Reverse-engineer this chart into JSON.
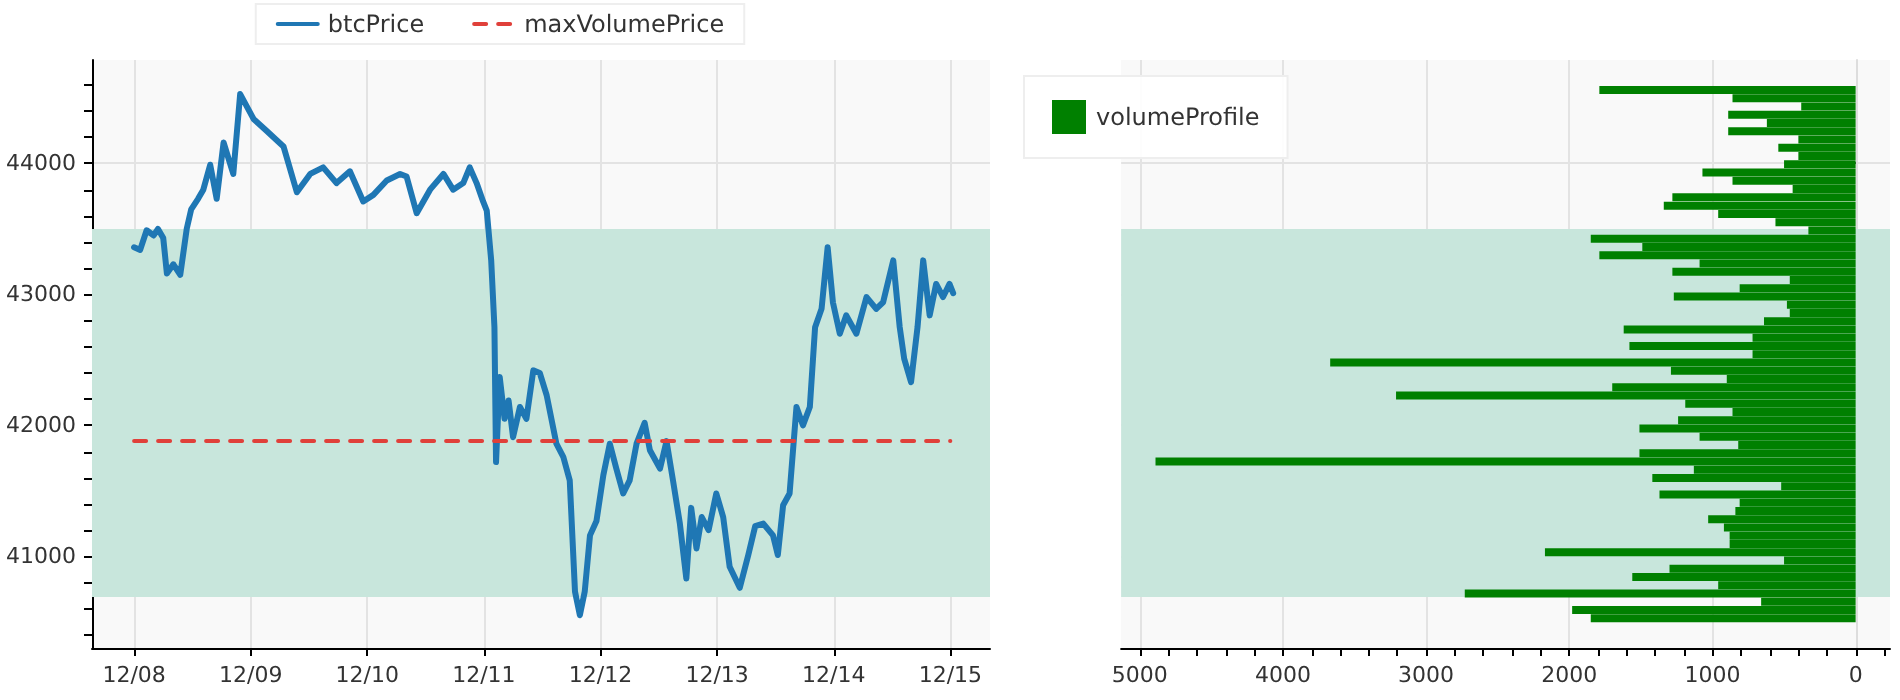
{
  "chart_data": [
    {
      "type": "line",
      "marker": "none",
      "grid": true,
      "legend": "top",
      "series": [
        {
          "name": "btcPrice",
          "color": "#1f77b4",
          "line_style": "solid",
          "x": [
            "--12-08T00:00",
            "--12-08T01:15",
            "--12-08T02:35",
            "--12-08T04:00",
            "--12-08T04:55",
            "--12-08T06:00",
            "--12-08T06:45",
            "--12-08T08:05",
            "--12-08T09:30",
            "--12-08T10:50",
            "--12-08T11:45",
            "--12-08T13:10",
            "--12-08T14:15",
            "--12-08T15:40",
            "--12-08T17:00",
            "--12-08T18:25",
            "--12-08T20:25",
            "--12-08T21:50",
            "--12-09T00:35",
            "--12-09T03:15",
            "--12-09T06:45",
            "--12-09T09:30",
            "--12-09T12:15",
            "--12-09T14:55",
            "--12-09T17:40",
            "--12-09T20:25",
            "--12-09T23:10",
            "--12-10T01:15",
            "--12-10T04:00",
            "--12-10T06:45",
            "--12-10T08:05",
            "--12-10T10:10",
            "--12-10T12:55",
            "--12-10T15:40",
            "--12-10T17:40",
            "--12-10T19:45",
            "--12-10T21:05",
            "--12-10T22:30",
            "--12-10T23:50",
            "--12-11T00:35",
            "--12-11T01:30",
            "--12-11T02:10",
            "--12-11T02:30",
            "--12-11T03:15",
            "--12-11T04:15",
            "--12-11T05:05",
            "--12-11T06:00",
            "--12-11T07:25",
            "--12-11T08:45",
            "--12-11T10:10",
            "--12-11T11:30",
            "--12-11T12:55",
            "--12-11T14:55",
            "--12-11T16:20",
            "--12-11T17:40",
            "--12-11T18:45",
            "--12-11T19:45",
            "--12-11T20:45",
            "--12-11T21:50",
            "--12-11T23:10",
            "--12-12T00:35",
            "--12-12T01:55",
            "--12-12T03:15",
            "--12-12T04:40",
            "--12-12T06:00",
            "--12-12T07:25",
            "--12-12T09:05",
            "--12-12T10:10",
            "--12-12T12:15",
            "--12-12T13:35",
            "--12-12T14:55",
            "--12-12T16:20",
            "--12-12T17:40",
            "--12-12T18:40",
            "--12-12T19:45",
            "--12-12T20:50",
            "--12-12T22:15",
            "--12-12T23:50",
            "--12-13T01:15",
            "--12-13T02:35",
            "--12-13T04:40",
            "--12-13T06:25",
            "--12-13T07:50",
            "--12-13T09:30",
            "--12-13T11:30",
            "--12-13T12:30",
            "--12-13T13:35",
            "--12-13T14:55",
            "--12-13T16:20",
            "--12-13T17:40",
            "--12-13T19:05",
            "--12-13T20:10",
            "--12-13T21:30",
            "--12-13T22:45",
            "--12-13T23:50",
            "--12-14T01:15",
            "--12-14T02:35",
            "--12-14T04:40",
            "--12-14T06:45",
            "--12-14T08:45",
            "--12-14T10:10",
            "--12-14T12:15",
            "--12-14T13:35",
            "--12-14T14:30",
            "--12-14T15:55",
            "--12-14T17:15",
            "--12-14T18:25",
            "--12-14T19:45",
            "--12-14T21:05",
            "--12-14T22:30",
            "--12-14T23:50",
            "--12-15T00:35"
          ],
          "values": [
            43360,
            43340,
            43490,
            43450,
            43500,
            43430,
            43160,
            43230,
            43150,
            43500,
            43650,
            43730,
            43800,
            43990,
            43730,
            44160,
            43920,
            44530,
            44340,
            44250,
            44130,
            43780,
            43920,
            43970,
            43850,
            43940,
            43710,
            43760,
            43870,
            43920,
            43900,
            43620,
            43800,
            43920,
            43800,
            43850,
            43970,
            43850,
            43710,
            43640,
            43260,
            42750,
            41720,
            42370,
            42050,
            42190,
            41910,
            42140,
            42050,
            42420,
            42400,
            42230,
            41860,
            41760,
            41580,
            40730,
            40550,
            40730,
            41160,
            41270,
            41620,
            41860,
            41670,
            41480,
            41580,
            41860,
            42020,
            41810,
            41670,
            41880,
            41580,
            41250,
            40830,
            41370,
            41060,
            41300,
            41200,
            41480,
            41300,
            40920,
            40760,
            41010,
            41230,
            41250,
            41160,
            41010,
            41390,
            41480,
            42140,
            42000,
            42140,
            42750,
            42890,
            43360,
            42940,
            42700,
            42840,
            42700,
            42980,
            42890,
            42940,
            43260,
            42750,
            42510,
            42330,
            42750,
            43260,
            42840,
            43080,
            42980,
            43080,
            43010
          ]
        },
        {
          "name": "maxVolumePrice",
          "color": "#e0403a",
          "line_style": "dashed",
          "x": [
            "--12-08",
            "--12-15"
          ],
          "values": [
            41880,
            41880
          ]
        }
      ],
      "xlim": [
        "--12-07T15:20",
        "--12-15T08:10"
      ],
      "xticks": [
        {
          "value": "--12-08",
          "label": "12/08"
        },
        {
          "value": "--12-09",
          "label": "12/09"
        },
        {
          "value": "--12-10",
          "label": "12/10"
        },
        {
          "value": "--12-11",
          "label": "12/11"
        },
        {
          "value": "--12-12",
          "label": "12/12"
        },
        {
          "value": "--12-13",
          "label": "12/13"
        },
        {
          "value": "--12-14",
          "label": "12/14"
        },
        {
          "value": "--12-15",
          "label": "12/15"
        }
      ],
      "ylim": [
        40300,
        44790
      ],
      "yticks": [
        {
          "value": 40400,
          "label": null
        },
        {
          "value": 40600,
          "label": null
        },
        {
          "value": 40800,
          "label": null
        },
        41000,
        {
          "value": 41200,
          "label": null
        },
        {
          "value": 41400,
          "label": null
        },
        {
          "value": 41600,
          "label": null
        },
        {
          "value": 41800,
          "label": null
        },
        42000,
        {
          "value": 42200,
          "label": null
        },
        {
          "value": 42400,
          "label": null
        },
        {
          "value": 42600,
          "label": null
        },
        {
          "value": 42800,
          "label": null
        },
        43000,
        {
          "value": 43200,
          "label": null
        },
        {
          "value": 43400,
          "label": null
        },
        {
          "value": 43600,
          "label": null
        },
        {
          "value": 43800,
          "label": null
        },
        44000,
        {
          "value": 44200,
          "label": null
        },
        {
          "value": 44400,
          "label": null
        },
        {
          "value": 44600,
          "label": null
        }
      ],
      "bands": [
        {
          "axis": "y",
          "from": 40690,
          "to": 43500,
          "color": "#c8e6dc"
        }
      ]
    },
    {
      "type": "bar",
      "orientation": "horizontal",
      "grid": true,
      "legend": "top left",
      "tick_labels": "x",
      "x": [
        44560,
        44497,
        44434,
        44371,
        44308,
        44245,
        44182,
        44119,
        44056,
        43993,
        43930,
        43867,
        43804,
        43741,
        43678,
        43615,
        43552,
        43489,
        43426,
        43363,
        43300,
        43237,
        43174,
        43111,
        43048,
        42985,
        42922,
        42859,
        42796,
        42733,
        42670,
        42607,
        42544,
        42481,
        42418,
        42355,
        42292,
        42229,
        42166,
        42103,
        42040,
        41977,
        41914,
        41851,
        41788,
        41725,
        41662,
        41599,
        41536,
        41473,
        41410,
        41347,
        41284,
        41221,
        41158,
        41095,
        41032,
        40969,
        40906,
        40843,
        40780,
        40717,
        40654,
        40591,
        40528
      ],
      "series": [
        {
          "name": "volumeProfile",
          "color": "#008000",
          "values": [
            1790,
            860,
            380,
            890,
            620,
            890,
            400,
            540,
            400,
            500,
            1070,
            860,
            440,
            1280,
            1340,
            960,
            560,
            330,
            1850,
            1490,
            1790,
            1090,
            1280,
            460,
            810,
            1270,
            480,
            460,
            640,
            1620,
            720,
            1580,
            720,
            3670,
            1290,
            900,
            1700,
            3210,
            1190,
            860,
            1240,
            1510,
            1090,
            820,
            1510,
            4890,
            1130,
            1420,
            520,
            1370,
            810,
            840,
            1030,
            920,
            880,
            880,
            2170,
            500,
            1300,
            1560,
            960,
            2730,
            660,
            1980,
            1850
          ]
        }
      ],
      "xlim": [
        5130,
        -240
      ],
      "xticks": [
        5000,
        {
          "value": 4800,
          "label": null
        },
        {
          "value": 4600,
          "label": null
        },
        {
          "value": 4400,
          "label": null
        },
        {
          "value": 4200,
          "label": null
        },
        4000,
        {
          "value": 3800,
          "label": null
        },
        {
          "value": 3600,
          "label": null
        },
        {
          "value": 3400,
          "label": null
        },
        {
          "value": 3200,
          "label": null
        },
        3000,
        {
          "value": 2800,
          "label": null
        },
        {
          "value": 2600,
          "label": null
        },
        {
          "value": 2400,
          "label": null
        },
        {
          "value": 2200,
          "label": null
        },
        2000,
        {
          "value": 1800,
          "label": null
        },
        {
          "value": 1600,
          "label": null
        },
        {
          "value": 1400,
          "label": null
        },
        {
          "value": 1200,
          "label": null
        },
        1000,
        {
          "value": 800,
          "label": null
        },
        {
          "value": 600,
          "label": null
        },
        {
          "value": 400,
          "label": null
        },
        {
          "value": 200,
          "label": null
        },
        0,
        {
          "value": -200,
          "label": null
        }
      ],
      "ylim": [
        40300,
        44790
      ],
      "yticks": [
        {
          "value": 41000,
          "label": null
        },
        {
          "value": 42000,
          "label": null
        },
        {
          "value": 43000,
          "label": null
        },
        {
          "value": 44000,
          "label": null
        }
      ],
      "bands": [
        {
          "axis": "y",
          "from": 40690,
          "to": 43500,
          "color": "#c8e6dc"
        }
      ]
    }
  ]
}
